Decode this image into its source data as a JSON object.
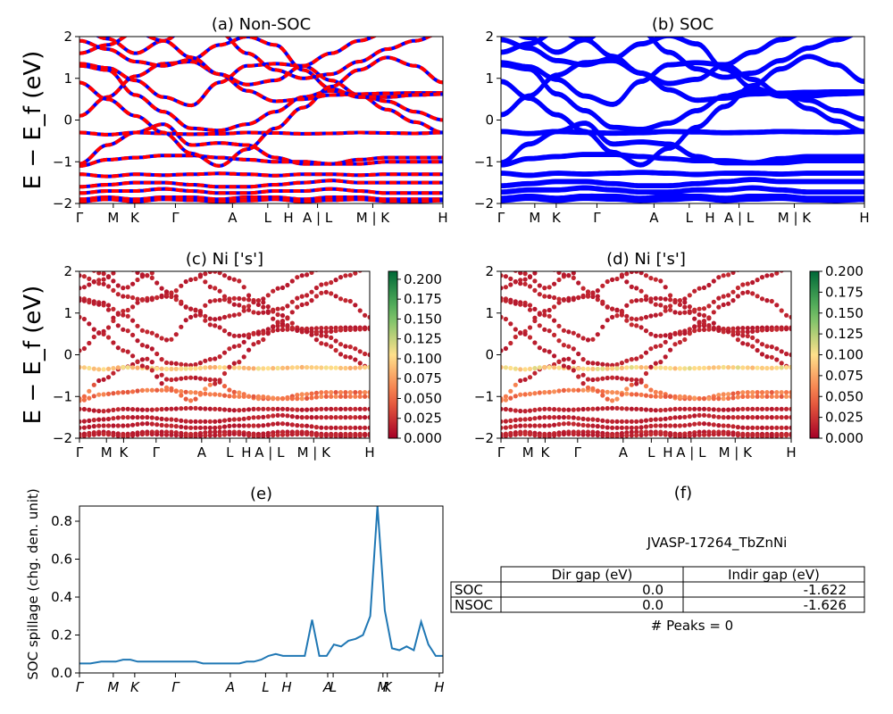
{
  "chart_data": [
    {
      "id": "a",
      "type": "line",
      "title": "(a) Non-SOC",
      "ylabel": "E − E_f (eV)",
      "ylim": [
        -2,
        2
      ],
      "yticks": [
        "2",
        "1",
        "0",
        "−1",
        "−2"
      ],
      "kpath": [
        "Γ",
        "M",
        "K",
        "Γ",
        "A",
        "L",
        "H",
        "A | L",
        "M | K",
        "H"
      ],
      "colors": [
        "#0000ff",
        "#ff0000"
      ],
      "style": "dashed",
      "bands": [
        [
          1.35,
          1.25,
          0.95,
          0.55,
          0.35,
          0.9,
          1.3,
          1.35,
          1.3,
          0.95,
          0.6,
          0.25,
          -0.05,
          -0.3
        ],
        [
          1.3,
          1.2,
          0.6,
          0.2,
          -0.2,
          -0.25,
          -0.1,
          0.2,
          0.55,
          0.7,
          0.6,
          0.45,
          0.2,
          0.0
        ],
        [
          -1.05,
          -0.6,
          -0.3,
          -0.1,
          -0.6,
          -0.55,
          -0.6,
          -0.9,
          -1.05,
          -1.05,
          -0.95,
          -0.9,
          -0.9,
          -0.9
        ],
        [
          -1.1,
          -0.95,
          -0.9,
          -0.85,
          -0.85,
          -0.9,
          -0.95,
          -1.0,
          -1.0,
          -1.05,
          -1.05,
          -1.0,
          -1.0,
          -1.0
        ],
        [
          0.1,
          0.55,
          1.05,
          1.35,
          1.4,
          1.1,
          0.7,
          0.45,
          0.5,
          0.6,
          0.62,
          0.64,
          0.65,
          0.65
        ],
        [
          1.9,
          1.7,
          1.4,
          1.3,
          1.45,
          1.8,
          2.0,
          1.8,
          1.2,
          0.75,
          0.55,
          0.55,
          0.6,
          0.62
        ],
        [
          -1.6,
          -1.55,
          -1.5,
          -1.5,
          -1.55,
          -1.6,
          -1.6,
          -1.55,
          -1.5,
          -1.45,
          -1.5,
          -1.5,
          -1.5,
          -1.5
        ],
        [
          -1.75,
          -1.7,
          -1.7,
          -1.65,
          -1.7,
          -1.75,
          -1.75,
          -1.7,
          -1.7,
          -1.65,
          -1.7,
          -1.75,
          -1.75,
          -1.75
        ],
        [
          -1.9,
          -1.85,
          -1.9,
          -1.85,
          -1.85,
          -1.9,
          -1.85,
          -1.85,
          -1.9,
          -1.85,
          -1.85,
          -1.9,
          -1.9,
          -1.9
        ]
      ]
    },
    {
      "id": "b",
      "type": "line",
      "title": "(b) SOC",
      "ylim": [
        -2,
        2
      ],
      "yticks": [
        "2",
        "1",
        "0",
        "−1",
        "−2"
      ],
      "kpath": [
        "Γ",
        "M",
        "K",
        "Γ",
        "A",
        "L",
        "H",
        "A | L",
        "M | K",
        "H"
      ],
      "colors": [
        "#0000ff"
      ],
      "style": "solid"
    },
    {
      "id": "c",
      "type": "scatter",
      "title": "(c)  Ni ['s']",
      "ylabel": "E − E_f (eV)",
      "ylim": [
        -2,
        2
      ],
      "yticks": [
        "2",
        "1",
        "0",
        "−1",
        "−2"
      ],
      "kpath": [
        "Γ",
        "M",
        "K",
        "Γ",
        "A",
        "L",
        "H",
        "A | L",
        "M | K",
        "H"
      ],
      "colorbar": {
        "min": 0.0,
        "max": 0.21,
        "ticks": [
          "0.200",
          "0.175",
          "0.150",
          "0.125",
          "0.100",
          "0.075",
          "0.050",
          "0.025",
          "0.000"
        ],
        "cmap": "RdYlGn"
      }
    },
    {
      "id": "d",
      "type": "scatter",
      "title": "(d) Ni ['s']",
      "ylim": [
        -2,
        2
      ],
      "yticks": [
        "2",
        "1",
        "0",
        "−1",
        "−2"
      ],
      "kpath": [
        "Γ",
        "M",
        "K",
        "Γ",
        "A",
        "L",
        "H",
        "A | L",
        "M | K",
        "H"
      ],
      "colorbar": {
        "min": 0.0,
        "max": 0.2,
        "ticks": [
          "0.200",
          "0.175",
          "0.150",
          "0.125",
          "0.100",
          "0.075",
          "0.050",
          "0.025",
          "0.000"
        ],
        "cmap": "RdYlGn"
      }
    },
    {
      "id": "e",
      "type": "line",
      "title": "(e)",
      "ylabel": "SOC spillage (chg. den. unit)",
      "ylim": [
        0,
        0.88
      ],
      "yticks": [
        "0.8",
        "0.6",
        "0.4",
        "0.2",
        "0.0"
      ],
      "kpath": [
        "Γ",
        "M",
        "K",
        "Γ",
        "A",
        "L",
        "H",
        "A",
        "L",
        "M",
        "K",
        "H"
      ],
      "color": "#1f77b4",
      "x": [
        0,
        3,
        6,
        8,
        10,
        12,
        14,
        16,
        18,
        20,
        22,
        24,
        26,
        28,
        30,
        32,
        34,
        36,
        38,
        40,
        42,
        44,
        46,
        48,
        50,
        52,
        54,
        56,
        58,
        60,
        62,
        64,
        66,
        68,
        70,
        72,
        74,
        76,
        78,
        80,
        82,
        84,
        86,
        88,
        90,
        92,
        94,
        96,
        98,
        100
      ],
      "y": [
        0.05,
        0.05,
        0.06,
        0.06,
        0.06,
        0.07,
        0.07,
        0.06,
        0.06,
        0.06,
        0.06,
        0.06,
        0.06,
        0.06,
        0.06,
        0.06,
        0.05,
        0.05,
        0.05,
        0.05,
        0.05,
        0.05,
        0.06,
        0.06,
        0.07,
        0.09,
        0.1,
        0.09,
        0.09,
        0.09,
        0.09,
        0.28,
        0.09,
        0.09,
        0.15,
        0.14,
        0.17,
        0.18,
        0.2,
        0.3,
        0.88,
        0.33,
        0.13,
        0.12,
        0.14,
        0.12,
        0.27,
        0.15,
        0.09,
        0.09
      ]
    }
  ],
  "table": {
    "title": "(f)",
    "material": "JVASP-17264_TbZnNi",
    "headers": [
      "Dir gap (eV)",
      "Indir gap (eV)"
    ],
    "rows": [
      {
        "label": "SOC",
        "dir": "0.0",
        "indir": "-1.622"
      },
      {
        "label": "NSOC",
        "dir": "0.0",
        "indir": "-1.626"
      }
    ],
    "peaks": "# Peaks = 0"
  }
}
